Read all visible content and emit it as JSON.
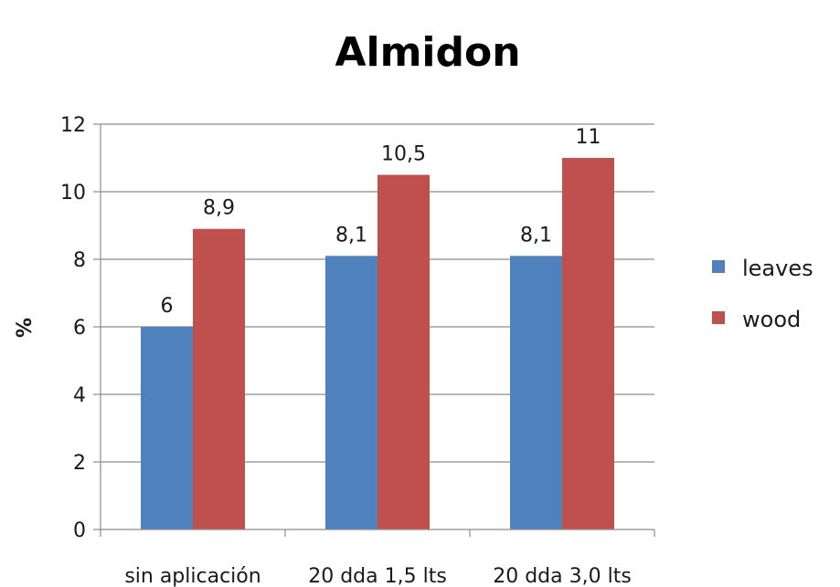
{
  "chart_data": {
    "type": "bar",
    "title": "Almidon",
    "xlabel": "",
    "ylabel": "%",
    "ylim": [
      0,
      12
    ],
    "yticks": [
      0,
      2,
      4,
      6,
      8,
      10,
      12
    ],
    "grid": true,
    "legend_position": "right",
    "categories": [
      "sin aplicación",
      "20 dda 1,5 lts",
      "20 dda 3,0 lts"
    ],
    "series": [
      {
        "name": "leaves",
        "color": "#4f81bd",
        "values": [
          6,
          8.1,
          8.1
        ],
        "data_labels": [
          "6",
          "8,1",
          "8,1"
        ]
      },
      {
        "name": "wood",
        "color": "#c0504d",
        "values": [
          8.9,
          10.5,
          11
        ],
        "data_labels": [
          "8,9",
          "10,5",
          "11"
        ]
      }
    ]
  }
}
